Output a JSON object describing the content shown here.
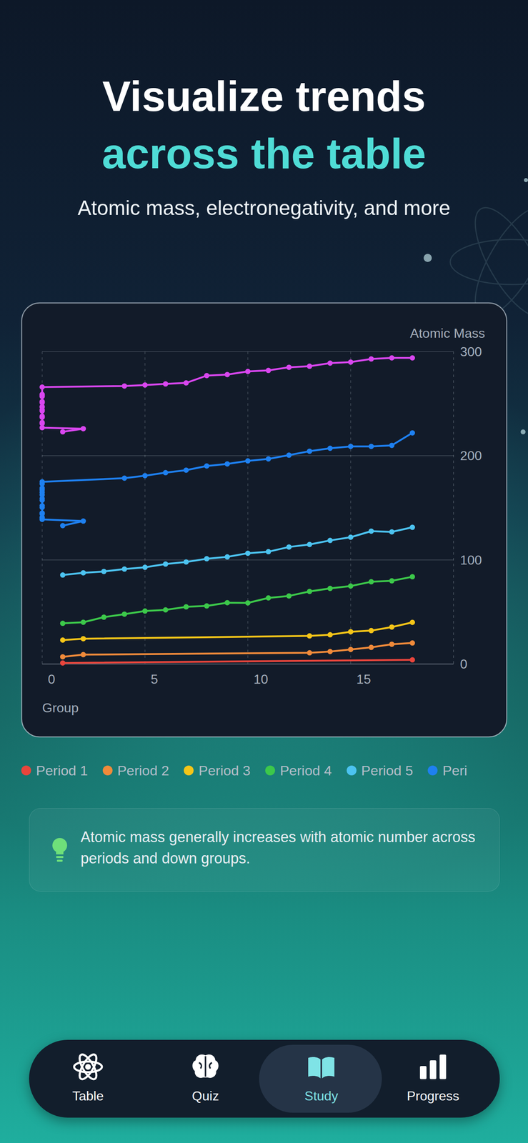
{
  "header": {
    "title_line1": "Visualize trends",
    "title_line2": "across the table",
    "subtitle": "Atomic mass, electronegativity, and more"
  },
  "chart_data": {
    "type": "line",
    "ylabel": "Atomic Mass",
    "xlabel": "Group",
    "xlim": [
      0,
      20
    ],
    "xticks": [
      0,
      5,
      10,
      15
    ],
    "ylim": [
      0,
      300
    ],
    "yticks": [
      0,
      100,
      200,
      300
    ],
    "grid": true,
    "legend": "bottom",
    "marker": "circle",
    "series": [
      {
        "name": "Period 1",
        "color": "#e8453c",
        "x": [
          1,
          18
        ],
        "values": [
          1.0,
          4.0
        ]
      },
      {
        "name": "Period 2",
        "color": "#f08a3a",
        "x": [
          1,
          2,
          13,
          14,
          15,
          16,
          17,
          18
        ],
        "values": [
          6.9,
          9.0,
          10.8,
          12.0,
          14.0,
          16.0,
          19.0,
          20.2
        ]
      },
      {
        "name": "Period 3",
        "color": "#f5c518",
        "x": [
          1,
          2,
          13,
          14,
          15,
          16,
          17,
          18
        ],
        "values": [
          23.0,
          24.3,
          27.0,
          28.1,
          31.0,
          32.1,
          35.5,
          40.0
        ]
      },
      {
        "name": "Period 4",
        "color": "#3cc84a",
        "x": [
          1,
          2,
          3,
          4,
          5,
          6,
          7,
          8,
          9,
          10,
          11,
          12,
          13,
          14,
          15,
          16,
          17,
          18
        ],
        "values": [
          39.1,
          40.1,
          45.0,
          47.9,
          50.9,
          52.0,
          54.9,
          55.8,
          58.9,
          58.7,
          63.5,
          65.4,
          69.7,
          72.6,
          74.9,
          79.0,
          79.9,
          83.8
        ]
      },
      {
        "name": "Period 5",
        "color": "#4cc3f0",
        "x": [
          1,
          2,
          3,
          4,
          5,
          6,
          7,
          8,
          9,
          10,
          11,
          12,
          13,
          14,
          15,
          16,
          17,
          18
        ],
        "values": [
          85.5,
          87.6,
          88.9,
          91.2,
          92.9,
          96.0,
          98.0,
          101.1,
          102.9,
          106.4,
          107.9,
          112.4,
          114.8,
          118.7,
          121.8,
          127.6,
          126.9,
          131.3
        ]
      },
      {
        "name": "Peri",
        "color": "#1e80f0",
        "x": [
          1,
          2,
          0,
          0,
          0,
          0,
          0,
          0,
          0,
          0,
          0,
          0,
          0,
          0,
          0,
          0,
          0,
          4,
          5,
          6,
          7,
          8,
          9,
          10,
          11,
          12,
          13,
          14,
          15,
          16,
          17,
          18
        ],
        "values": [
          132.9,
          137.3,
          138.9,
          140.1,
          140.9,
          144.2,
          145.0,
          150.4,
          152.0,
          157.3,
          158.9,
          162.5,
          164.9,
          167.3,
          168.9,
          173.0,
          175.0,
          178.5,
          180.9,
          183.8,
          186.2,
          190.2,
          192.2,
          195.1,
          197.0,
          200.6,
          204.4,
          207.2,
          209.0,
          209.0,
          210.0,
          222.0
        ]
      },
      {
        "color": "#d946ef",
        "x": [
          1,
          2,
          0,
          0,
          0,
          0,
          0,
          0,
          0,
          0,
          0,
          0,
          0,
          0,
          0,
          0,
          0,
          4,
          5,
          6,
          7,
          8,
          9,
          10,
          11,
          12,
          13,
          14,
          15,
          16,
          17,
          18
        ],
        "values": [
          223.0,
          226.0,
          227.0,
          232.0,
          231.0,
          238.0,
          237.0,
          244.0,
          243.0,
          247.0,
          247.0,
          251.0,
          252.0,
          257.0,
          258.0,
          259.0,
          266.0,
          267.0,
          268.0,
          269.0,
          270.0,
          277.0,
          278.0,
          281.0,
          282.0,
          285.0,
          286.0,
          289.0,
          290.0,
          293.0,
          294.0,
          294.0
        ]
      }
    ]
  },
  "tip": {
    "text": "Atomic mass generally increases with atomic number across periods and down groups."
  },
  "nav": {
    "items": [
      {
        "label": "Table"
      },
      {
        "label": "Quiz"
      },
      {
        "label": "Study"
      },
      {
        "label": "Progress"
      }
    ]
  }
}
